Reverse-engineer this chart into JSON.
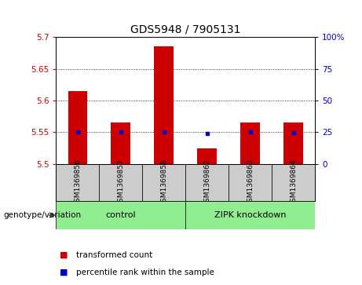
{
  "title": "GDS5948 / 7905131",
  "samples": [
    "GSM1369856",
    "GSM1369857",
    "GSM1369858",
    "GSM1369862",
    "GSM1369863",
    "GSM1369864"
  ],
  "red_values": [
    5.615,
    5.565,
    5.685,
    5.525,
    5.565,
    5.565
  ],
  "blue_values": [
    5.551,
    5.551,
    5.551,
    5.548,
    5.551,
    5.549
  ],
  "y_min": 5.5,
  "y_max": 5.7,
  "y_ticks_left": [
    5.5,
    5.55,
    5.6,
    5.65,
    5.7
  ],
  "y_ticks_right": [
    0,
    25,
    50,
    75,
    100
  ],
  "bar_width": 0.45,
  "bar_color": "#cc0000",
  "dot_color": "#0000cc",
  "group_info": [
    {
      "label": "control",
      "start": 0,
      "end": 2,
      "color": "#90ee90"
    },
    {
      "label": "ZIPK knockdown",
      "start": 3,
      "end": 5,
      "color": "#90ee90"
    }
  ],
  "group_label_prefix": "genotype/variation",
  "legend_red": "transformed count",
  "legend_blue": "percentile rank within the sample",
  "sample_bg_color": "#cccccc",
  "plot_bg": "#ffffff",
  "left_tick_color": "#cc0000",
  "right_tick_color": "#0000cc",
  "title_fontsize": 10,
  "tick_fontsize": 7.5,
  "sample_fontsize": 6.5,
  "group_fontsize": 8,
  "legend_fontsize": 7.5
}
